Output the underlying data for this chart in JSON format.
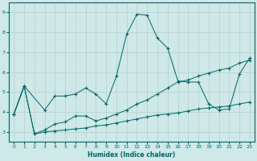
{
  "xlabel": "Humidex (Indice chaleur)",
  "bg_color": "#cfe8e8",
  "grid_color": "#b0d0d0",
  "line_color": "#006666",
  "xlim": [
    -0.5,
    23.5
  ],
  "ylim": [
    2.5,
    9.5
  ],
  "xticks": [
    0,
    1,
    2,
    3,
    4,
    5,
    6,
    7,
    8,
    9,
    10,
    11,
    12,
    13,
    14,
    15,
    16,
    17,
    18,
    19,
    20,
    21,
    22,
    23
  ],
  "yticks": [
    3,
    4,
    5,
    6,
    7,
    8,
    9
  ],
  "curve_peaked_x": [
    0,
    1,
    3,
    4,
    5,
    6,
    7,
    8,
    9,
    10,
    11,
    12,
    13,
    14,
    15,
    16,
    17,
    18,
    19,
    20,
    21,
    22,
    23
  ],
  "curve_peaked_y": [
    3.9,
    5.3,
    4.1,
    4.8,
    4.8,
    4.9,
    5.2,
    4.9,
    4.4,
    5.8,
    7.9,
    8.9,
    8.85,
    7.7,
    7.2,
    5.55,
    5.5,
    5.5,
    4.4,
    4.1,
    4.15,
    5.9,
    6.7
  ],
  "curve_mid_x": [
    0,
    1,
    2,
    3,
    4,
    5,
    6,
    7,
    8,
    9,
    10,
    11,
    12,
    13,
    14,
    15,
    16,
    17,
    18,
    19,
    20,
    21,
    22,
    23
  ],
  "curve_mid_y": [
    3.9,
    5.3,
    2.9,
    3.1,
    3.4,
    3.5,
    3.8,
    3.8,
    3.55,
    3.7,
    3.9,
    4.1,
    4.4,
    4.6,
    4.9,
    5.2,
    5.5,
    5.6,
    5.8,
    5.95,
    6.1,
    6.2,
    6.45,
    6.6
  ],
  "curve_low_x": [
    0,
    1,
    2,
    3,
    4,
    5,
    6,
    7,
    8,
    9,
    10,
    11,
    12,
    13,
    14,
    15,
    16,
    17,
    18,
    19,
    20,
    21,
    22,
    23
  ],
  "curve_low_y": [
    3.9,
    5.3,
    2.9,
    3.0,
    3.05,
    3.1,
    3.15,
    3.2,
    3.3,
    3.35,
    3.45,
    3.55,
    3.65,
    3.75,
    3.85,
    3.9,
    3.95,
    4.05,
    4.15,
    4.2,
    4.25,
    4.3,
    4.4,
    4.5
  ]
}
